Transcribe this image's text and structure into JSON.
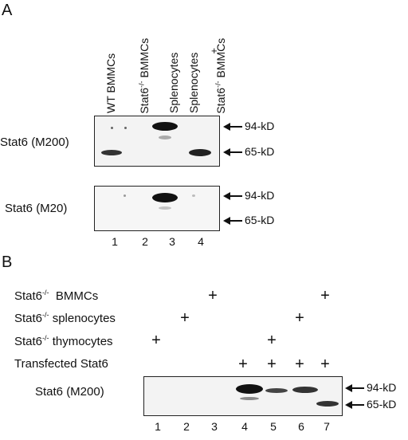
{
  "panel_a": {
    "letter": "A",
    "columns": {
      "c1": "WT BMMCs",
      "c2a": "Stat6",
      "c2sup": "-/-",
      "c2b": " BMMCs",
      "c3": "Splenocytes",
      "c4a": "Splenocytes",
      "c4plus": "+",
      "c4b": "Stat6",
      "c4sup": "-/-",
      "c4c": " BMMCs"
    },
    "blot1_label": "Stat6 (M200)",
    "blot2_label": "Stat6 (M20)",
    "markers": {
      "m94": "94-kD",
      "m65": "65-kD"
    },
    "lanes": [
      "1",
      "2",
      "3",
      "4"
    ]
  },
  "panel_b": {
    "letter": "B",
    "rows": {
      "r1a": "Stat6",
      "r1sup": "-/-",
      "r1b": "  BMMCs",
      "r2a": "Stat6",
      "r2sup": "-/-",
      "r2b": " splenocytes",
      "r3a": "Stat6",
      "r3sup": "-/-",
      "r3b": " thymocytes",
      "r4": "Transfected Stat6"
    },
    "plus": "+",
    "blot_label": "Stat6 (M200)",
    "markers": {
      "m94": "94-kD",
      "m65": "65-kD"
    },
    "lanes": [
      "1",
      "2",
      "3",
      "4",
      "5",
      "6",
      "7"
    ]
  }
}
